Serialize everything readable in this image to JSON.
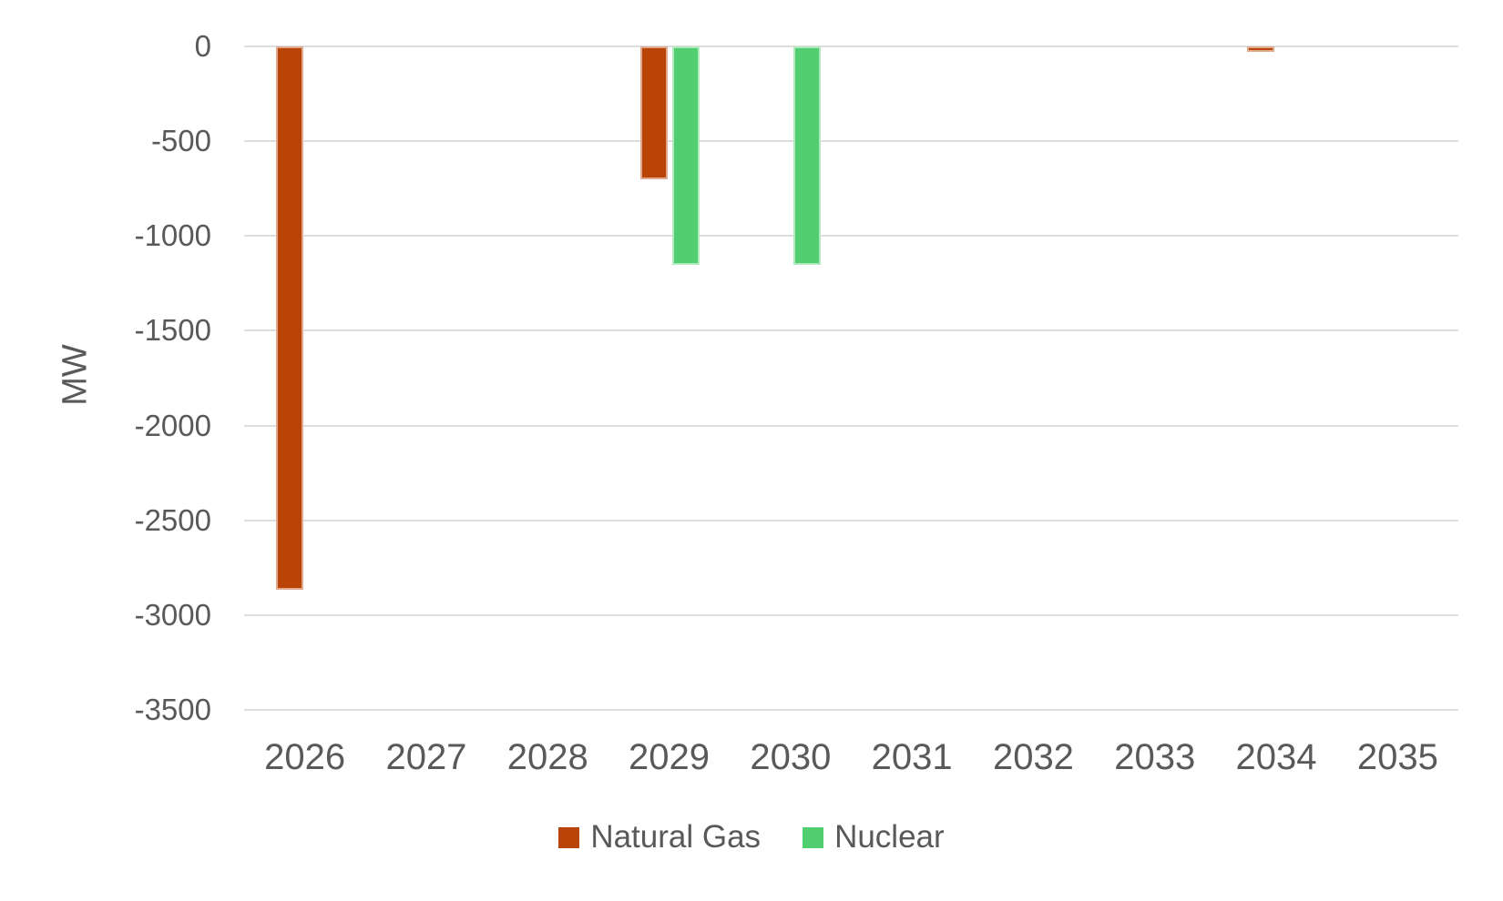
{
  "chart_data": {
    "type": "bar",
    "title": "",
    "xlabel": "",
    "ylabel": "MW",
    "categories": [
      "2026",
      "2027",
      "2028",
      "2029",
      "2030",
      "2031",
      "2032",
      "2033",
      "2034",
      "2035"
    ],
    "series": [
      {
        "name": "Natural Gas",
        "color": "#b94405",
        "values": [
          -2865,
          0,
          0,
          -700,
          0,
          0,
          0,
          0,
          -30,
          0
        ]
      },
      {
        "name": "Nuclear",
        "color": "#50ce70",
        "values": [
          0,
          0,
          0,
          -1150,
          -1150,
          0,
          0,
          0,
          0,
          0
        ]
      }
    ],
    "ylim": [
      -3500,
      0
    ],
    "yticks": [
      0,
      -500,
      -1000,
      -1500,
      -2000,
      -2500,
      -3000,
      -3500
    ],
    "grid": true,
    "legend_position": "bottom"
  },
  "colors": {
    "gridline": "#dedede",
    "axis_text": "#58595b",
    "background": "#ffffff"
  }
}
